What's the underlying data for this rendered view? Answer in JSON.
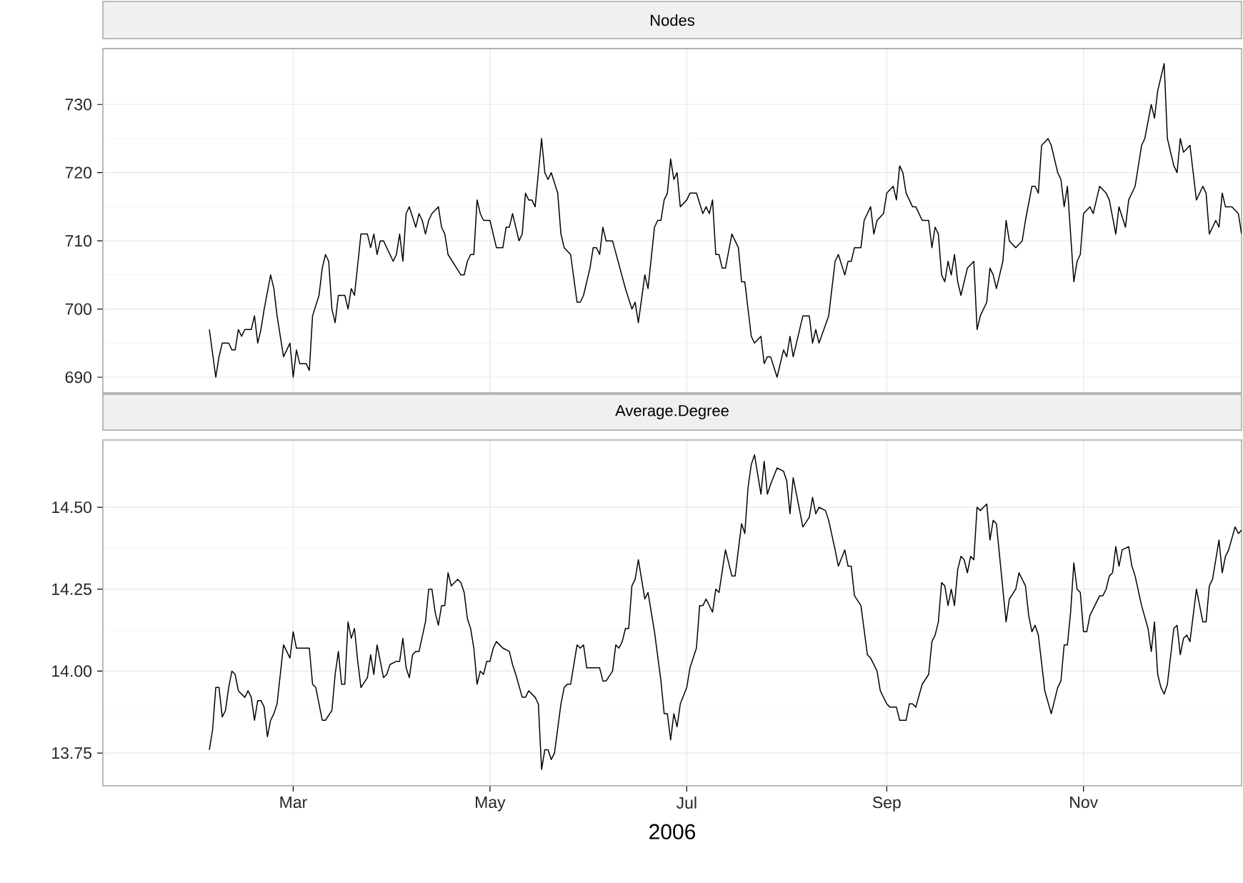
{
  "chart_data": [
    {
      "type": "line",
      "title": "Nodes",
      "tick_labels": "y",
      "grid": true,
      "xlim": [
        "2006-01-01",
        "2006-12-20"
      ],
      "ylim": [
        687.7,
        738.2
      ],
      "xticks": [
        {
          "value": "2006-03-01",
          "label": null
        },
        {
          "value": "2006-05-01",
          "label": null
        },
        {
          "value": "2006-07-01",
          "label": null
        },
        {
          "value": "2006-09-01",
          "label": null
        },
        {
          "value": "2006-11-01",
          "label": null
        }
      ],
      "yticks": [
        690,
        700,
        710,
        720,
        730
      ],
      "x": [
        "2006-02-03",
        "2006-02-05",
        "2006-02-06",
        "2006-02-07",
        "2006-02-09",
        "2006-02-10",
        "2006-02-11",
        "2006-02-12",
        "2006-02-13",
        "2006-02-14",
        "2006-02-16",
        "2006-02-17",
        "2006-02-18",
        "2006-02-19",
        "2006-02-20",
        "2006-02-22",
        "2006-02-23",
        "2006-02-24",
        "2006-02-26",
        "2006-02-27",
        "2006-02-28",
        "2006-03-01",
        "2006-03-02",
        "2006-03-03",
        "2006-03-05",
        "2006-03-06",
        "2006-03-07",
        "2006-03-09",
        "2006-03-10",
        "2006-03-11",
        "2006-03-12",
        "2006-03-13",
        "2006-03-14",
        "2006-03-15",
        "2006-03-17",
        "2006-03-18",
        "2006-03-19",
        "2006-03-20",
        "2006-03-22",
        "2006-03-24",
        "2006-03-25",
        "2006-03-26",
        "2006-03-27",
        "2006-03-28",
        "2006-03-29",
        "2006-04-01",
        "2006-04-02",
        "2006-04-03",
        "2006-04-04",
        "2006-04-05",
        "2006-04-06",
        "2006-04-08",
        "2006-04-09",
        "2006-04-10",
        "2006-04-11",
        "2006-04-12",
        "2006-04-13",
        "2006-04-15",
        "2006-04-16",
        "2006-04-17",
        "2006-04-18",
        "2006-04-22",
        "2006-04-23",
        "2006-04-24",
        "2006-04-25",
        "2006-04-26",
        "2006-04-27",
        "2006-04-28",
        "2006-04-29",
        "2006-05-01",
        "2006-05-03",
        "2006-05-05",
        "2006-05-06",
        "2006-05-07",
        "2006-05-08",
        "2006-05-10",
        "2006-05-11",
        "2006-05-12",
        "2006-05-13",
        "2006-05-14",
        "2006-05-15",
        "2006-05-17",
        "2006-05-18",
        "2006-05-19",
        "2006-05-20",
        "2006-05-22",
        "2006-05-23",
        "2006-05-24",
        "2006-05-26",
        "2006-05-28",
        "2006-05-29",
        "2006-05-30",
        "2006-06-01",
        "2006-06-02",
        "2006-06-03",
        "2006-06-04",
        "2006-06-05",
        "2006-06-06",
        "2006-06-08",
        "2006-06-12",
        "2006-06-14",
        "2006-06-15",
        "2006-06-16",
        "2006-06-18",
        "2006-06-19",
        "2006-06-21",
        "2006-06-22",
        "2006-06-23",
        "2006-06-24",
        "2006-06-25",
        "2006-06-26",
        "2006-06-27",
        "2006-06-28",
        "2006-06-29",
        "2006-07-01",
        "2006-07-02",
        "2006-07-04",
        "2006-07-06",
        "2006-07-07",
        "2006-07-08",
        "2006-07-09",
        "2006-07-10",
        "2006-07-11",
        "2006-07-12",
        "2006-07-13",
        "2006-07-15",
        "2006-07-16",
        "2006-07-17",
        "2006-07-18",
        "2006-07-19",
        "2006-07-21",
        "2006-07-22",
        "2006-07-24",
        "2006-07-25",
        "2006-07-26",
        "2006-07-27",
        "2006-07-29",
        "2006-07-31",
        "2006-08-01",
        "2006-08-02",
        "2006-08-03",
        "2006-08-04",
        "2006-08-06",
        "2006-08-08",
        "2006-08-09",
        "2006-08-10",
        "2006-08-11",
        "2006-08-14",
        "2006-08-16",
        "2006-08-17",
        "2006-08-19",
        "2006-08-20",
        "2006-08-21",
        "2006-08-22",
        "2006-08-24",
        "2006-08-25",
        "2006-08-27",
        "2006-08-28",
        "2006-08-29",
        "2006-08-31",
        "2006-09-01",
        "2006-09-03",
        "2006-09-04",
        "2006-09-05",
        "2006-09-06",
        "2006-09-07",
        "2006-09-09",
        "2006-09-10",
        "2006-09-12",
        "2006-09-14",
        "2006-09-15",
        "2006-09-16",
        "2006-09-17",
        "2006-09-18",
        "2006-09-19",
        "2006-09-20",
        "2006-09-21",
        "2006-09-22",
        "2006-09-23",
        "2006-09-24",
        "2006-09-26",
        "2006-09-28",
        "2006-09-29",
        "2006-09-30",
        "2006-10-02",
        "2006-10-03",
        "2006-10-04",
        "2006-10-05",
        "2006-10-07",
        "2006-10-08",
        "2006-10-09",
        "2006-10-11",
        "2006-10-13",
        "2006-10-14",
        "2006-10-16",
        "2006-10-17",
        "2006-10-18",
        "2006-10-19",
        "2006-10-21",
        "2006-10-22",
        "2006-10-24",
        "2006-10-25",
        "2006-10-26",
        "2006-10-27",
        "2006-10-29",
        "2006-10-30",
        "2006-10-31",
        "2006-11-01",
        "2006-11-03",
        "2006-11-04",
        "2006-11-05",
        "2006-11-06",
        "2006-11-08",
        "2006-11-09",
        "2006-11-11",
        "2006-11-12",
        "2006-11-14",
        "2006-11-15",
        "2006-11-17",
        "2006-11-19",
        "2006-11-20",
        "2006-11-22",
        "2006-11-23",
        "2006-11-24",
        "2006-11-26",
        "2006-11-27",
        "2006-11-29",
        "2006-11-30",
        "2006-12-01",
        "2006-12-02",
        "2006-12-04",
        "2006-12-06",
        "2006-12-08",
        "2006-12-09",
        "2006-12-10",
        "2006-12-12",
        "2006-12-13",
        "2006-12-14",
        "2006-12-15",
        "2006-12-17",
        "2006-12-19",
        "2006-12-20"
      ],
      "series": [
        {
          "color": "#000000",
          "values": [
            697,
            690,
            693,
            695,
            695,
            694,
            694,
            697,
            696,
            697,
            697,
            699,
            695,
            697,
            700,
            705,
            703,
            699,
            693,
            694,
            695,
            690,
            694,
            692,
            692,
            691,
            699,
            702,
            706,
            708,
            707,
            700,
            698,
            702,
            702,
            700,
            703,
            702,
            711,
            711,
            709,
            711,
            708,
            710,
            710,
            707,
            708,
            711,
            707,
            714,
            715,
            712,
            714,
            713,
            711,
            713,
            714,
            715,
            712,
            711,
            708,
            705,
            705,
            707,
            708,
            708,
            716,
            714,
            713,
            713,
            709,
            709,
            712,
            712,
            714,
            710,
            711,
            717,
            716,
            716,
            715,
            725,
            720,
            719,
            720,
            717,
            711,
            709,
            708,
            701,
            701,
            702,
            706,
            709,
            709,
            708,
            712,
            710,
            710,
            703,
            700,
            701,
            698,
            705,
            703,
            712,
            713,
            713,
            716,
            717,
            722,
            719,
            720,
            715,
            716,
            717,
            717,
            714,
            715,
            714,
            716,
            708,
            708,
            706,
            706,
            711,
            710,
            709,
            704,
            704,
            696,
            695,
            696,
            692,
            693,
            693,
            690,
            694,
            693,
            696,
            693,
            695,
            699,
            699,
            695,
            697,
            695,
            699,
            707,
            708,
            705,
            707,
            707,
            709,
            709,
            713,
            715,
            711,
            713,
            714,
            717,
            718,
            716,
            721,
            720,
            717,
            715,
            715,
            713,
            713,
            709,
            712,
            711,
            705,
            704,
            707,
            705,
            708,
            704,
            702,
            706,
            707,
            697,
            699,
            701,
            706,
            705,
            703,
            707,
            713,
            710,
            709,
            710,
            713,
            718,
            718,
            717,
            724,
            725,
            724,
            720,
            719,
            715,
            718,
            704,
            707,
            708,
            714,
            715,
            714,
            716,
            718,
            717,
            716,
            711,
            715,
            712,
            716,
            718,
            724,
            725,
            730,
            728,
            732,
            736,
            725,
            721,
            720,
            725,
            723,
            724,
            716,
            718,
            717,
            711,
            713,
            712,
            717,
            715,
            715,
            714,
            711
          ]
        }
      ]
    },
    {
      "type": "line",
      "title": "Average.Degree",
      "xlabel": "2006",
      "grid": true,
      "xlim": [
        "2006-01-01",
        "2006-12-20"
      ],
      "ylim": [
        13.65,
        14.705
      ],
      "xticks": [
        {
          "value": "2006-03-01",
          "label": "Mar"
        },
        {
          "value": "2006-05-01",
          "label": "May"
        },
        {
          "value": "2006-07-01",
          "label": "Jul"
        },
        {
          "value": "2006-09-01",
          "label": "Sep"
        },
        {
          "value": "2006-11-01",
          "label": "Nov"
        }
      ],
      "yticks": [
        13.75,
        {
          "value": 14,
          "label": "14.00"
        },
        14.25,
        {
          "value": 14.5,
          "label": "14.50"
        }
      ],
      "x": [
        "2006-02-03",
        "2006-02-04",
        "2006-02-05",
        "2006-02-06",
        "2006-02-07",
        "2006-02-08",
        "2006-02-09",
        "2006-02-10",
        "2006-02-11",
        "2006-02-12",
        "2006-02-13",
        "2006-02-14",
        "2006-02-15",
        "2006-02-16",
        "2006-02-17",
        "2006-02-18",
        "2006-02-19",
        "2006-02-20",
        "2006-02-21",
        "2006-02-22",
        "2006-02-23",
        "2006-02-24",
        "2006-02-26",
        "2006-02-27",
        "2006-02-28",
        "2006-03-01",
        "2006-03-02",
        "2006-03-03",
        "2006-03-06",
        "2006-03-07",
        "2006-03-08",
        "2006-03-09",
        "2006-03-10",
        "2006-03-11",
        "2006-03-13",
        "2006-03-14",
        "2006-03-15",
        "2006-03-16",
        "2006-03-17",
        "2006-03-18",
        "2006-03-19",
        "2006-03-20",
        "2006-03-21",
        "2006-03-22",
        "2006-03-24",
        "2006-03-25",
        "2006-03-26",
        "2006-03-27",
        "2006-03-28",
        "2006-03-29",
        "2006-03-30",
        "2006-03-31",
        "2006-04-02",
        "2006-04-03",
        "2006-04-04",
        "2006-04-05",
        "2006-04-06",
        "2006-04-07",
        "2006-04-08",
        "2006-04-09",
        "2006-04-11",
        "2006-04-12",
        "2006-04-13",
        "2006-04-14",
        "2006-04-15",
        "2006-04-16",
        "2006-04-17",
        "2006-04-18",
        "2006-04-19",
        "2006-04-20",
        "2006-04-21",
        "2006-04-22",
        "2006-04-23",
        "2006-04-24",
        "2006-04-25",
        "2006-04-26",
        "2006-04-27",
        "2006-04-28",
        "2006-04-29",
        "2006-04-30",
        "2006-05-01",
        "2006-05-02",
        "2006-05-03",
        "2006-05-05",
        "2006-05-07",
        "2006-05-08",
        "2006-05-09",
        "2006-05-11",
        "2006-05-12",
        "2006-05-13",
        "2006-05-15",
        "2006-05-16",
        "2006-05-17",
        "2006-05-18",
        "2006-05-19",
        "2006-05-20",
        "2006-05-21",
        "2006-05-23",
        "2006-05-24",
        "2006-05-25",
        "2006-05-26",
        "2006-05-28",
        "2006-05-29",
        "2006-05-30",
        "2006-05-31",
        "2006-06-03",
        "2006-06-04",
        "2006-06-05",
        "2006-06-06",
        "2006-06-08",
        "2006-06-09",
        "2006-06-10",
        "2006-06-11",
        "2006-06-12",
        "2006-06-13",
        "2006-06-14",
        "2006-06-15",
        "2006-06-16",
        "2006-06-18",
        "2006-06-19",
        "2006-06-21",
        "2006-06-23",
        "2006-06-24",
        "2006-06-25",
        "2006-06-26",
        "2006-06-27",
        "2006-06-28",
        "2006-06-29",
        "2006-07-01",
        "2006-07-02",
        "2006-07-04",
        "2006-07-05",
        "2006-07-06",
        "2006-07-07",
        "2006-07-08",
        "2006-07-09",
        "2006-07-10",
        "2006-07-11",
        "2006-07-13",
        "2006-07-15",
        "2006-07-16",
        "2006-07-18",
        "2006-07-19",
        "2006-07-20",
        "2006-07-21",
        "2006-07-22",
        "2006-07-24",
        "2006-07-25",
        "2006-07-26",
        "2006-07-27",
        "2006-07-29",
        "2006-07-31",
        "2006-08-01",
        "2006-08-02",
        "2006-08-03",
        "2006-08-05",
        "2006-08-06",
        "2006-08-08",
        "2006-08-09",
        "2006-08-10",
        "2006-08-11",
        "2006-08-13",
        "2006-08-14",
        "2006-08-16",
        "2006-08-17",
        "2006-08-19",
        "2006-08-20",
        "2006-08-21",
        "2006-08-22",
        "2006-08-24",
        "2006-08-26",
        "2006-08-27",
        "2006-08-29",
        "2006-08-30",
        "2006-09-01",
        "2006-09-02",
        "2006-09-04",
        "2006-09-05",
        "2006-09-07",
        "2006-09-08",
        "2006-09-09",
        "2006-09-10",
        "2006-09-12",
        "2006-09-14",
        "2006-09-15",
        "2006-09-16",
        "2006-09-17",
        "2006-09-18",
        "2006-09-19",
        "2006-09-20",
        "2006-09-21",
        "2006-09-22",
        "2006-09-23",
        "2006-09-24",
        "2006-09-25",
        "2006-09-26",
        "2006-09-27",
        "2006-09-28",
        "2006-09-29",
        "2006-09-30",
        "2006-10-02",
        "2006-10-03",
        "2006-10-04",
        "2006-10-05",
        "2006-10-06",
        "2006-10-08",
        "2006-10-09",
        "2006-10-11",
        "2006-10-12",
        "2006-10-14",
        "2006-10-15",
        "2006-10-16",
        "2006-10-17",
        "2006-10-18",
        "2006-10-20",
        "2006-10-22",
        "2006-10-24",
        "2006-10-25",
        "2006-10-26",
        "2006-10-27",
        "2006-10-28",
        "2006-10-29",
        "2006-10-30",
        "2006-10-31",
        "2006-11-01",
        "2006-11-02",
        "2006-11-03",
        "2006-11-05",
        "2006-11-06",
        "2006-11-07",
        "2006-11-08",
        "2006-11-09",
        "2006-11-10",
        "2006-11-11",
        "2006-11-12",
        "2006-11-13",
        "2006-11-15",
        "2006-11-16",
        "2006-11-17",
        "2006-11-19",
        "2006-11-21",
        "2006-11-22",
        "2006-11-23",
        "2006-11-24",
        "2006-11-25",
        "2006-11-26",
        "2006-11-27",
        "2006-11-29",
        "2006-11-30",
        "2006-12-01",
        "2006-12-02",
        "2006-12-03",
        "2006-12-04",
        "2006-12-06",
        "2006-12-08",
        "2006-12-09",
        "2006-12-10",
        "2006-12-11",
        "2006-12-13",
        "2006-12-14",
        "2006-12-15",
        "2006-12-16",
        "2006-12-18",
        "2006-12-19",
        "2006-12-20"
      ],
      "series": [
        {
          "color": "#000000",
          "values": [
            13.76,
            13.82,
            13.95,
            13.95,
            13.86,
            13.88,
            13.95,
            14.0,
            13.99,
            13.94,
            13.93,
            13.92,
            13.94,
            13.92,
            13.85,
            13.91,
            13.91,
            13.89,
            13.8,
            13.85,
            13.87,
            13.9,
            14.08,
            14.06,
            14.04,
            14.12,
            14.07,
            14.07,
            14.07,
            13.96,
            13.95,
            13.9,
            13.85,
            13.85,
            13.88,
            13.99,
            14.06,
            13.96,
            13.96,
            14.15,
            14.1,
            14.13,
            14.03,
            13.95,
            13.98,
            14.05,
            13.99,
            14.08,
            14.03,
            13.98,
            13.99,
            14.02,
            14.03,
            14.03,
            14.1,
            14.01,
            13.98,
            14.05,
            14.06,
            14.06,
            14.15,
            14.25,
            14.25,
            14.18,
            14.14,
            14.2,
            14.2,
            14.3,
            14.26,
            14.27,
            14.28,
            14.27,
            14.24,
            14.16,
            14.13,
            14.07,
            13.96,
            14.0,
            13.99,
            14.03,
            14.03,
            14.07,
            14.09,
            14.07,
            14.06,
            14.02,
            13.99,
            13.92,
            13.92,
            13.94,
            13.92,
            13.9,
            13.7,
            13.76,
            13.76,
            13.73,
            13.75,
            13.9,
            13.95,
            13.96,
            13.96,
            14.08,
            14.07,
            14.08,
            14.01,
            14.01,
            14.01,
            13.97,
            13.97,
            14.0,
            14.08,
            14.07,
            14.09,
            14.13,
            14.13,
            14.26,
            14.28,
            14.34,
            14.22,
            14.24,
            14.12,
            13.97,
            13.87,
            13.87,
            13.79,
            13.87,
            13.83,
            13.9,
            13.95,
            14.01,
            14.07,
            14.2,
            14.2,
            14.22,
            14.2,
            14.18,
            14.25,
            14.24,
            14.37,
            14.29,
            14.29,
            14.45,
            14.42,
            14.56,
            14.63,
            14.66,
            14.54,
            14.64,
            14.54,
            14.57,
            14.62,
            14.61,
            14.58,
            14.48,
            14.59,
            14.49,
            14.44,
            14.47,
            14.53,
            14.48,
            14.5,
            14.49,
            14.46,
            14.37,
            14.32,
            14.37,
            14.32,
            14.32,
            14.23,
            14.2,
            14.05,
            14.04,
            14.0,
            13.94,
            13.9,
            13.89,
            13.89,
            13.85,
            13.85,
            13.9,
            13.9,
            13.89,
            13.96,
            13.99,
            14.09,
            14.11,
            14.15,
            14.27,
            14.26,
            14.2,
            14.25,
            14.2,
            14.31,
            14.35,
            14.34,
            14.3,
            14.35,
            14.34,
            14.5,
            14.49,
            14.51,
            14.4,
            14.46,
            14.45,
            14.35,
            14.15,
            14.22,
            14.25,
            14.3,
            14.26,
            14.17,
            14.12,
            14.14,
            14.11,
            13.94,
            13.87,
            13.95,
            13.97,
            14.08,
            14.08,
            14.18,
            14.33,
            14.25,
            14.24,
            14.12,
            14.12,
            14.17,
            14.21,
            14.23,
            14.23,
            14.25,
            14.29,
            14.3,
            14.38,
            14.32,
            14.37,
            14.38,
            14.32,
            14.29,
            14.2,
            14.13,
            14.06,
            14.15,
            13.99,
            13.95,
            13.93,
            13.96,
            14.13,
            14.14,
            14.05,
            14.1,
            14.11,
            14.09,
            14.25,
            14.15,
            14.15,
            14.26,
            14.28,
            14.4,
            14.3,
            14.35,
            14.37,
            14.44,
            14.42,
            14.43
          ]
        }
      ]
    }
  ]
}
